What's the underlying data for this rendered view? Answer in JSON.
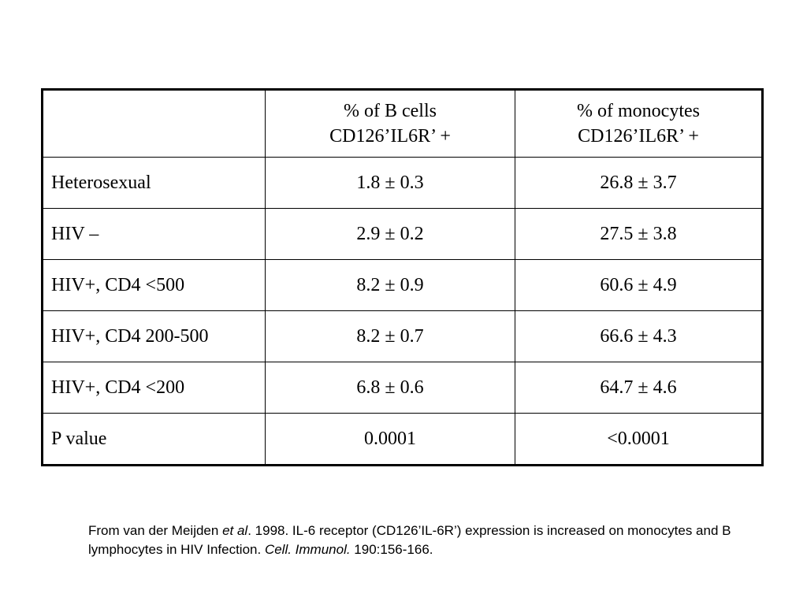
{
  "table": {
    "header": {
      "col1": "",
      "col2_line1": "% of B cells",
      "col2_line2": "CD126’IL6R’ +",
      "col3_line1": "% of monocytes",
      "col3_line2": "CD126’IL6R’ +"
    },
    "rows": [
      {
        "label": "Heterosexual",
        "b_cells": "1.8 ±  0.3",
        "monocytes": "26.8 ±  3.7"
      },
      {
        "label": "HIV –",
        "b_cells": "2.9 ±  0.2",
        "monocytes": "27.5 ±  3.8"
      },
      {
        "label": "HIV+, CD4 <500",
        "b_cells": "8.2 ±  0.9",
        "monocytes": "60.6 ±  4.9"
      },
      {
        "label": "HIV+, CD4 200-500",
        "b_cells": "8.2 ±  0.7",
        "monocytes": "66.6 ± 4.3"
      },
      {
        "label": "HIV+, CD4 <200",
        "b_cells": "6.8 ±  0.6",
        "monocytes": "64.7 ±  4.6"
      },
      {
        "label": "P value",
        "b_cells": "0.0001",
        "monocytes": "<0.0001"
      }
    ]
  },
  "citation": {
    "part1": "From van der Meijden ",
    "etal": "et al",
    "part2": ".  1998.  IL-6 receptor (CD126’IL-6R’) expression is increased on monocytes and B lymphocytes in HIV Infection.  ",
    "journal": "Cell. Immunol.",
    "part3": " 190:156-166."
  }
}
